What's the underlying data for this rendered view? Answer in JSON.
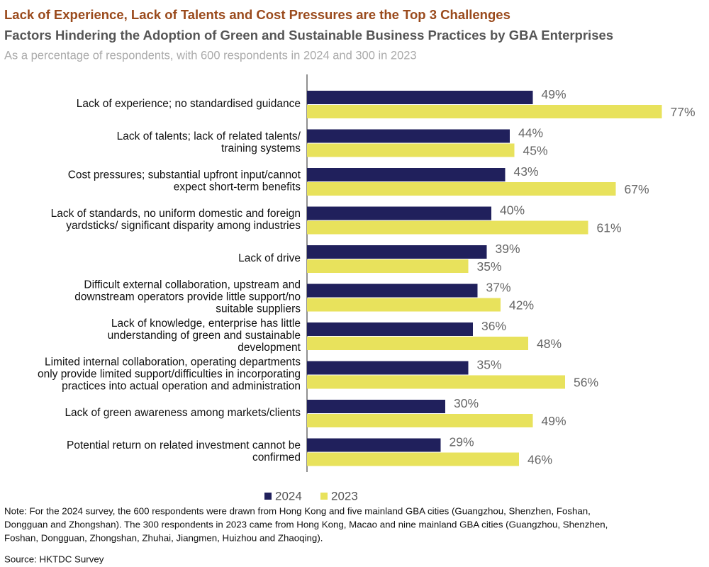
{
  "chart_data": {
    "type": "barh",
    "title": "Lack of Experience, Lack of Talents and Cost Pressures are the Top 3 Challenges",
    "subtitle": "Factors Hindering the Adoption of Green and Sustainable Business Practices by GBA Enterprises",
    "caption": "As a percentage of respondents, with 600 respondents in 2024 and 300 in 2023",
    "categories": [
      [
        "Lack of experience; no standardised guidance"
      ],
      [
        "Lack of talents; lack of related talents/",
        "training systems"
      ],
      [
        "Cost pressures; substantial upfront input/cannot",
        "expect short-term benefits"
      ],
      [
        "Lack of standards, no uniform domestic and foreign",
        "yardsticks/ significant disparity among industries"
      ],
      [
        "Lack of drive"
      ],
      [
        "Difficult external collaboration, upstream and",
        "downstream operators provide little support/no",
        "suitable suppliers"
      ],
      [
        "Lack of knowledge, enterprise has little",
        "understanding of green and sustainable",
        "development"
      ],
      [
        "Limited internal collaboration, operating departments",
        "only provide limited support/difficulties in incorporating",
        "practices into actual operation and administration"
      ],
      [
        "Lack of green awareness among markets/clients"
      ],
      [
        "Potential return on related investment cannot be",
        "confirmed"
      ]
    ],
    "series": [
      {
        "name": "2024",
        "color": "#20205c",
        "values": [
          49,
          44,
          43,
          40,
          39,
          37,
          36,
          35,
          30,
          29
        ],
        "value_labels": [
          "49%",
          "44%",
          "43%",
          "40%",
          "39%",
          "37%",
          "36%",
          "35%",
          "30%",
          "29%"
        ]
      },
      {
        "name": "2023",
        "color": "#e8e25c",
        "values": [
          77,
          45,
          67,
          61,
          35,
          42,
          48,
          56,
          49,
          46
        ],
        "value_labels": [
          "77%",
          "45%",
          "67%",
          "61%",
          "35%",
          "42%",
          "48%",
          "56%",
          "49%",
          "46%"
        ]
      }
    ],
    "xlim": [
      0,
      80
    ],
    "note": [
      "Note: For the 2024 survey, the 600 respondents were drawn from Hong Kong and five mainland GBA cities (Guangzhou, Shenzhen, Foshan,",
      "Dongguan and Zhongshan). The 300 respondents in 2023 came from Hong Kong, Macao and nine mainland GBA cities (Guangzhou, Shenzhen,",
      "Foshan, Dongguan, Zhongshan, Zhuhai, Jiangmen, Huizhou and Zhaoqing)."
    ],
    "source": "Source: HKTDC Survey"
  }
}
